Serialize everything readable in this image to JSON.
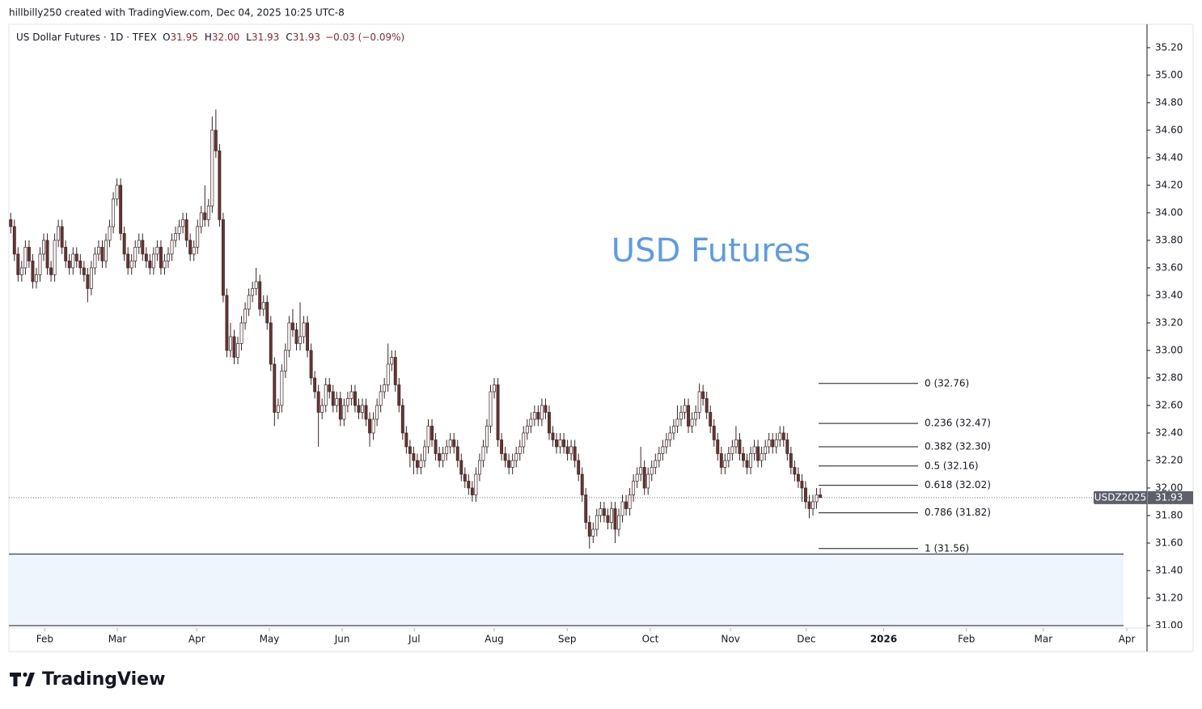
{
  "header": {
    "credit": "hillbilly250 created with TradingView.com, Dec 04, 2025 10:25 UTC-8"
  },
  "footer": {
    "brand": "TradingView"
  },
  "chart_data": {
    "type": "candlestick",
    "symbol": "US Dollar Futures · 1D · TFEX",
    "ohlc_legend": [
      {
        "key": "O",
        "value": 31.95
      },
      {
        "key": "H",
        "value": {
          "value": 32,
          "label": "32.00"
        }
      },
      {
        "key": "L",
        "value": 31.93
      },
      {
        "key": "C",
        "value": 31.93
      }
    ],
    "change": "−0.03 (−0.09%)",
    "watermark": "USD Futures",
    "up_color": "#ffffff",
    "down_color": "#6b3232",
    "wick_color": "#3a2424",
    "open": [
      33.95,
      33.9,
      33.7,
      33.55,
      33.6,
      33.75,
      33.65,
      33.5,
      33.55,
      33.7,
      33.8,
      33.6,
      33.55,
      33.8,
      33.9,
      33.75,
      33.65,
      33.6,
      33.7,
      33.65,
      33.6,
      33.55,
      33.45,
      33.6,
      33.7,
      33.75,
      33.65,
      33.8,
      33.9,
      34.1,
      34.2,
      33.85,
      33.7,
      33.6,
      33.65,
      33.75,
      33.8,
      33.7,
      33.65,
      33.6,
      33.7,
      33.75,
      33.6,
      33.65,
      33.7,
      33.8,
      33.85,
      33.9,
      33.95,
      33.8,
      33.7,
      33.75,
      33.9,
      34.0,
      33.95,
      34.05,
      34.6,
      34.45,
      33.95,
      33.4,
      33.0,
      33.1,
      32.95,
      33.05,
      33.2,
      33.3,
      33.4,
      33.45,
      33.5,
      33.3,
      33.35,
      33.2,
      32.9,
      32.55,
      32.6,
      32.85,
      33.0,
      33.2,
      33.15,
      33.05,
      33.1,
      33.2,
      33.0,
      32.8,
      32.7,
      32.55,
      32.6,
      32.75,
      32.7,
      32.6,
      32.65,
      32.5,
      32.6,
      32.65,
      32.7,
      32.6,
      32.55,
      32.6,
      32.5,
      32.4,
      32.5,
      32.6,
      32.7,
      32.75,
      32.9,
      32.95,
      32.75,
      32.6,
      32.4,
      32.3,
      32.25,
      32.2,
      32.15,
      32.2,
      32.3,
      32.45,
      32.35,
      32.25,
      32.2,
      32.25,
      32.3,
      32.35,
      32.3,
      32.2,
      32.1,
      32.05,
      32.0,
      31.95,
      32.1,
      32.2,
      32.3,
      32.45,
      32.7,
      32.75,
      32.35,
      32.25,
      32.2,
      32.15,
      32.2,
      32.25,
      32.3,
      32.4,
      32.45,
      32.5,
      32.55,
      32.5,
      32.6,
      32.55,
      32.4,
      32.35,
      32.3,
      32.35,
      32.3,
      32.25,
      32.3,
      32.2,
      32.1,
      31.95,
      31.75,
      31.65,
      31.7,
      31.8,
      31.85,
      31.8,
      31.75,
      31.85,
      31.7,
      31.8,
      31.9,
      31.85,
      31.95,
      32.05,
      32.1,
      32.15,
      32.0,
      32.1,
      32.15,
      32.2,
      32.25,
      32.3,
      32.35,
      32.4,
      32.45,
      32.5,
      32.55,
      32.6,
      32.45,
      32.5,
      32.55,
      32.7,
      32.65,
      32.55,
      32.45,
      32.35,
      32.25,
      32.15,
      32.2,
      32.25,
      32.3,
      32.35,
      32.25,
      32.2,
      32.15,
      32.25,
      32.3,
      32.2,
      32.25,
      32.3,
      32.35,
      32.3,
      32.35,
      32.4,
      32.35,
      32.25,
      32.15,
      32.1,
      32.05,
      32.0,
      31.9,
      31.85,
      31.9,
      31.95
    ],
    "high": [
      34.0,
      33.95,
      33.75,
      33.65,
      33.8,
      33.8,
      33.7,
      33.6,
      33.75,
      33.85,
      33.85,
      33.65,
      33.85,
      33.95,
      33.95,
      33.8,
      33.7,
      33.75,
      33.75,
      33.7,
      33.65,
      33.6,
      33.65,
      33.75,
      33.8,
      33.8,
      33.85,
      33.95,
      34.15,
      34.25,
      34.25,
      33.9,
      33.75,
      33.7,
      33.8,
      33.85,
      33.85,
      33.75,
      33.7,
      33.75,
      33.8,
      33.8,
      33.7,
      33.75,
      33.85,
      33.9,
      33.95,
      34.0,
      34.0,
      33.85,
      33.8,
      33.95,
      34.05,
      34.2,
      34.1,
      34.7,
      34.75,
      34.5,
      34.0,
      33.45,
      33.2,
      33.15,
      33.1,
      33.25,
      33.35,
      33.45,
      33.5,
      33.6,
      33.55,
      33.4,
      33.4,
      33.25,
      32.95,
      32.65,
      32.9,
      33.05,
      33.25,
      33.3,
      33.2,
      33.35,
      33.25,
      33.25,
      33.05,
      32.85,
      32.75,
      32.65,
      32.8,
      32.8,
      32.75,
      32.7,
      32.7,
      32.65,
      32.7,
      32.75,
      32.75,
      32.65,
      32.65,
      32.65,
      32.55,
      32.55,
      32.65,
      32.75,
      32.8,
      33.05,
      33.0,
      33.0,
      32.8,
      32.65,
      32.45,
      32.35,
      32.3,
      32.25,
      32.25,
      32.35,
      32.5,
      32.5,
      32.4,
      32.3,
      32.3,
      32.35,
      32.4,
      32.4,
      32.35,
      32.25,
      32.15,
      32.1,
      32.05,
      32.15,
      32.25,
      32.35,
      32.5,
      32.75,
      32.8,
      32.8,
      32.4,
      32.3,
      32.25,
      32.25,
      32.3,
      32.35,
      32.45,
      32.5,
      32.55,
      32.6,
      32.6,
      32.65,
      32.65,
      32.6,
      32.45,
      32.4,
      32.4,
      32.4,
      32.35,
      32.35,
      32.35,
      32.25,
      32.15,
      32.0,
      31.8,
      31.75,
      31.85,
      31.9,
      31.9,
      31.85,
      31.9,
      31.9,
      31.85,
      31.95,
      31.95,
      32.0,
      32.1,
      32.15,
      32.3,
      32.2,
      32.15,
      32.2,
      32.25,
      32.3,
      32.35,
      32.4,
      32.45,
      32.5,
      32.6,
      32.6,
      32.65,
      32.65,
      32.55,
      32.6,
      32.76,
      32.75,
      32.7,
      32.6,
      32.5,
      32.4,
      32.3,
      32.25,
      32.3,
      32.35,
      32.45,
      32.4,
      32.3,
      32.25,
      32.3,
      32.35,
      32.35,
      32.3,
      32.35,
      32.4,
      32.4,
      32.4,
      32.45,
      32.45,
      32.4,
      32.3,
      32.2,
      32.15,
      32.1,
      32.05,
      31.95,
      31.95,
      32.0,
      32.0
    ],
    "low": [
      33.85,
      33.65,
      33.5,
      33.5,
      33.55,
      33.6,
      33.45,
      33.45,
      33.5,
      33.65,
      33.55,
      33.5,
      33.5,
      33.75,
      33.7,
      33.6,
      33.55,
      33.55,
      33.6,
      33.55,
      33.5,
      33.35,
      33.4,
      33.55,
      33.65,
      33.6,
      33.6,
      33.75,
      33.85,
      34.05,
      33.8,
      33.65,
      33.55,
      33.55,
      33.6,
      33.7,
      33.65,
      33.6,
      33.55,
      33.55,
      33.65,
      33.55,
      33.55,
      33.6,
      33.65,
      33.75,
      33.8,
      33.85,
      33.75,
      33.65,
      33.65,
      33.7,
      33.85,
      33.9,
      33.9,
      34.0,
      34.4,
      33.9,
      33.35,
      32.95,
      32.95,
      32.9,
      32.9,
      33.0,
      33.15,
      33.25,
      33.35,
      33.4,
      33.25,
      33.25,
      33.15,
      32.85,
      32.45,
      32.5,
      32.55,
      32.8,
      32.95,
      33.1,
      33.0,
      33.0,
      33.05,
      32.95,
      32.75,
      32.65,
      32.3,
      32.5,
      32.55,
      32.65,
      32.55,
      32.55,
      32.45,
      32.45,
      32.55,
      32.6,
      32.55,
      32.5,
      32.5,
      32.45,
      32.3,
      32.35,
      32.45,
      32.55,
      32.65,
      32.7,
      32.85,
      32.7,
      32.55,
      32.35,
      32.25,
      32.15,
      32.1,
      32.1,
      32.1,
      32.15,
      32.25,
      32.3,
      32.2,
      32.15,
      32.15,
      32.2,
      32.25,
      32.25,
      32.15,
      32.05,
      32.0,
      31.95,
      31.9,
      31.9,
      32.05,
      32.15,
      32.25,
      32.4,
      32.65,
      32.3,
      32.2,
      32.15,
      32.1,
      32.1,
      32.15,
      32.2,
      32.25,
      32.35,
      32.4,
      32.45,
      32.45,
      32.45,
      32.5,
      32.35,
      32.3,
      32.25,
      32.25,
      32.25,
      32.2,
      32.2,
      32.15,
      32.05,
      31.9,
      31.7,
      31.56,
      31.6,
      31.65,
      31.75,
      31.75,
      31.7,
      31.7,
      31.6,
      31.65,
      31.75,
      31.8,
      31.8,
      31.9,
      32.0,
      32.05,
      31.95,
      31.95,
      32.05,
      32.1,
      32.15,
      32.2,
      32.25,
      32.3,
      32.35,
      32.4,
      32.45,
      32.5,
      32.4,
      32.4,
      32.45,
      32.5,
      32.6,
      32.5,
      32.4,
      32.3,
      32.2,
      32.1,
      32.1,
      32.15,
      32.2,
      32.25,
      32.2,
      32.15,
      32.1,
      32.1,
      32.2,
      32.15,
      32.15,
      32.2,
      32.25,
      32.25,
      32.25,
      32.3,
      32.3,
      32.2,
      32.1,
      32.05,
      32.0,
      31.9,
      31.85,
      31.78,
      31.8,
      31.85,
      31.93
    ],
    "close": [
      33.9,
      33.7,
      33.55,
      33.6,
      33.75,
      33.65,
      33.5,
      33.55,
      33.7,
      33.8,
      33.6,
      33.55,
      33.8,
      33.9,
      33.75,
      33.65,
      33.6,
      33.7,
      33.65,
      33.6,
      33.55,
      33.45,
      33.6,
      33.7,
      33.75,
      33.65,
      33.8,
      33.9,
      34.1,
      34.2,
      33.85,
      33.7,
      33.6,
      33.65,
      33.75,
      33.8,
      33.7,
      33.65,
      33.6,
      33.7,
      33.75,
      33.6,
      33.65,
      33.7,
      33.8,
      33.85,
      33.9,
      33.95,
      33.8,
      33.7,
      33.75,
      33.9,
      34.0,
      33.95,
      34.05,
      34.6,
      34.45,
      33.95,
      33.4,
      33.0,
      33.1,
      32.95,
      33.05,
      33.2,
      33.3,
      33.4,
      33.45,
      33.5,
      33.3,
      33.35,
      33.2,
      32.9,
      32.55,
      32.6,
      32.85,
      33.0,
      33.2,
      33.15,
      33.05,
      33.1,
      33.2,
      33.0,
      32.8,
      32.7,
      32.55,
      32.6,
      32.75,
      32.7,
      32.6,
      32.65,
      32.5,
      32.6,
      32.65,
      32.7,
      32.6,
      32.55,
      32.6,
      32.5,
      32.4,
      32.5,
      32.6,
      32.7,
      32.75,
      32.9,
      32.95,
      32.75,
      32.6,
      32.4,
      32.3,
      32.25,
      32.2,
      32.15,
      32.2,
      32.3,
      32.45,
      32.35,
      32.25,
      32.2,
      32.25,
      32.3,
      32.35,
      32.3,
      32.2,
      32.1,
      32.05,
      32.0,
      31.95,
      32.1,
      32.2,
      32.3,
      32.45,
      32.7,
      32.75,
      32.35,
      32.25,
      32.2,
      32.15,
      32.2,
      32.25,
      32.3,
      32.4,
      32.45,
      32.5,
      32.55,
      32.5,
      32.6,
      32.55,
      32.4,
      32.35,
      32.3,
      32.35,
      32.3,
      32.25,
      32.3,
      32.2,
      32.1,
      31.95,
      31.75,
      31.65,
      31.7,
      31.8,
      31.85,
      31.8,
      31.75,
      31.85,
      31.7,
      31.8,
      31.9,
      31.85,
      31.95,
      32.05,
      32.1,
      32.15,
      32.0,
      32.1,
      32.15,
      32.2,
      32.25,
      32.3,
      32.35,
      32.4,
      32.45,
      32.5,
      32.55,
      32.6,
      32.45,
      32.5,
      32.55,
      32.7,
      32.65,
      32.55,
      32.45,
      32.35,
      32.25,
      32.15,
      32.2,
      32.25,
      32.3,
      32.35,
      32.25,
      32.2,
      32.15,
      32.25,
      32.3,
      32.2,
      32.25,
      32.3,
      32.35,
      32.3,
      32.35,
      32.4,
      32.35,
      32.25,
      32.15,
      32.1,
      32.05,
      32.0,
      31.9,
      31.85,
      31.9,
      31.95,
      31.93
    ],
    "xlim": [
      -0.5,
      310.2
    ],
    "xticks": [
      {
        "value": 9.3,
        "label": "Feb"
      },
      {
        "value": 29.1,
        "label": "Mar"
      },
      {
        "value": 50.8,
        "label": "Apr"
      },
      {
        "value": 70.6,
        "label": "May"
      },
      {
        "value": 90.5,
        "label": "Jun"
      },
      {
        "value": 110.2,
        "label": "Jul"
      },
      {
        "value": 132.0,
        "label": "Aug"
      },
      {
        "value": 151.9,
        "label": "Sep"
      },
      {
        "value": 174.6,
        "label": "Oct"
      },
      {
        "value": 196.5,
        "label": "Nov"
      },
      {
        "value": 217.2,
        "label": "Dec"
      },
      {
        "value": 238.3,
        "label": "2026"
      },
      {
        "value": 260.9,
        "label": "Feb"
      },
      {
        "value": 281.9,
        "label": "Mar"
      },
      {
        "value": 304.7,
        "label": "Apr"
      }
    ],
    "ylim": [
      31.0,
      35.37
    ],
    "yticks": [
      {
        "value": 31,
        "label": "31.00"
      },
      {
        "value": 31.2,
        "label": "31.20"
      },
      {
        "value": 31.4,
        "label": "31.40"
      },
      {
        "value": 31.6,
        "label": "31.60"
      },
      {
        "value": 31.8,
        "label": "31.80"
      },
      {
        "value": 32,
        "label": "32.00"
      },
      {
        "value": 32.2,
        "label": "32.20"
      },
      {
        "value": 32.4,
        "label": "32.40"
      },
      {
        "value": 32.6,
        "label": "32.60"
      },
      {
        "value": 32.8,
        "label": "32.80"
      },
      {
        "value": 33,
        "label": "33.00"
      },
      {
        "value": 33.2,
        "label": "33.20"
      },
      {
        "value": 33.4,
        "label": "33.40"
      },
      {
        "value": 33.6,
        "label": "33.60"
      },
      {
        "value": 33.8,
        "label": "33.80"
      },
      {
        "value": 34,
        "label": "34.00"
      },
      {
        "value": 34.2,
        "label": "34.20"
      },
      {
        "value": 34.4,
        "label": "34.40"
      },
      {
        "value": 34.6,
        "label": "34.60"
      },
      {
        "value": 34.8,
        "label": "34.80"
      },
      {
        "value": 35,
        "label": "35.00"
      },
      {
        "value": 35.2,
        "label": "35.20"
      }
    ],
    "last_price": {
      "name": "USDZ2025",
      "value": 31.93
    },
    "fib_levels": [
      {
        "value": 32.76,
        "label": "0 (32.76)"
      },
      {
        "value": 32.47,
        "label": "0.236 (32.47)"
      },
      {
        "value": 32.3,
        "label": "0.382 (32.30)"
      },
      {
        "value": 32.16,
        "label": "0.5 (32.16)"
      },
      {
        "value": 32.02,
        "label": "0.618 (32.02)"
      },
      {
        "value": 31.82,
        "label": "0.786 (31.82)"
      },
      {
        "value": 31.56,
        "label": "1 (31.56)"
      }
    ],
    "zone": {
      "low": 31.0,
      "high": 31.52,
      "color": "#eef5fd"
    }
  }
}
